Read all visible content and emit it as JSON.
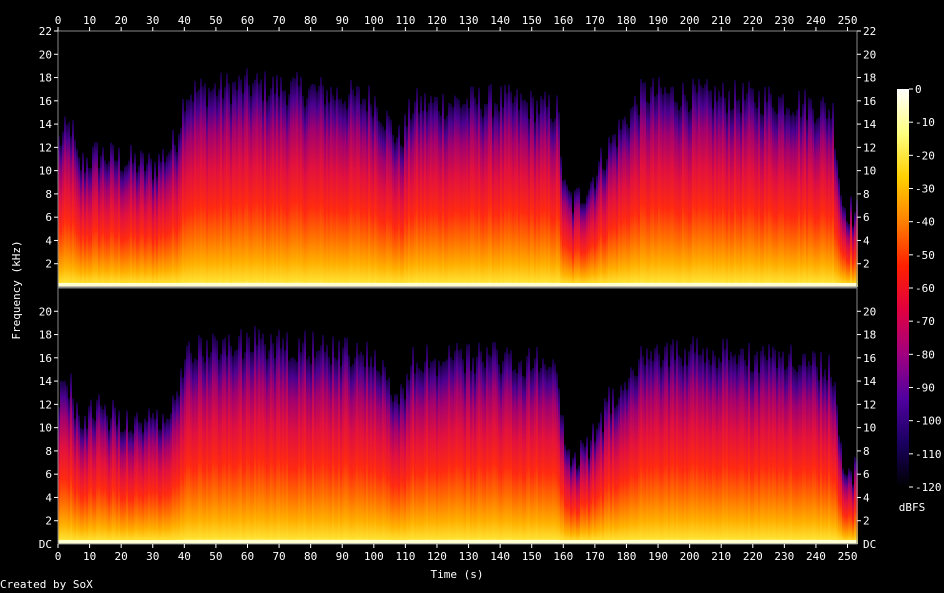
{
  "chart_data": {
    "type": "heatmap",
    "title": "",
    "xlabel": "Time (s)",
    "ylabel": "Frequency (kHz)",
    "xlim": [
      0,
      253
    ],
    "ylim": [
      0,
      22
    ],
    "x_ticks": [
      0,
      10,
      20,
      30,
      40,
      50,
      60,
      70,
      80,
      90,
      100,
      110,
      120,
      130,
      140,
      150,
      160,
      170,
      180,
      190,
      200,
      210,
      220,
      230,
      240,
      250
    ],
    "y_ticks": [
      2,
      4,
      6,
      8,
      10,
      12,
      14,
      16,
      18,
      20,
      22
    ],
    "y_zero_label_top": "22",
    "y_zero_label_bottom": "DC",
    "channels": 2,
    "colorbar": {
      "label": "dBFS",
      "range": [
        -120,
        0
      ],
      "ticks": [
        0,
        -10,
        -20,
        -30,
        -40,
        -50,
        -60,
        -70,
        -80,
        -90,
        -100,
        -110,
        -120
      ],
      "colors": [
        "#ffffff",
        "#ffff80",
        "#ffd000",
        "#ff8000",
        "#ff2000",
        "#e00040",
        "#a00080",
        "#5000a0",
        "#1a0060",
        "#000000"
      ]
    },
    "energy_profile": {
      "times": [
        0,
        4,
        6,
        12,
        30,
        37,
        40,
        60,
        80,
        100,
        108,
        112,
        140,
        158,
        160,
        163,
        168,
        175,
        185,
        200,
        230,
        245,
        248,
        253
      ],
      "level": [
        0.55,
        0.62,
        0.45,
        0.5,
        0.45,
        0.55,
        0.75,
        0.78,
        0.76,
        0.72,
        0.55,
        0.7,
        0.72,
        0.68,
        0.35,
        0.3,
        0.38,
        0.55,
        0.75,
        0.74,
        0.72,
        0.68,
        0.3,
        0.25
      ]
    }
  },
  "credit": "Created by SoX"
}
